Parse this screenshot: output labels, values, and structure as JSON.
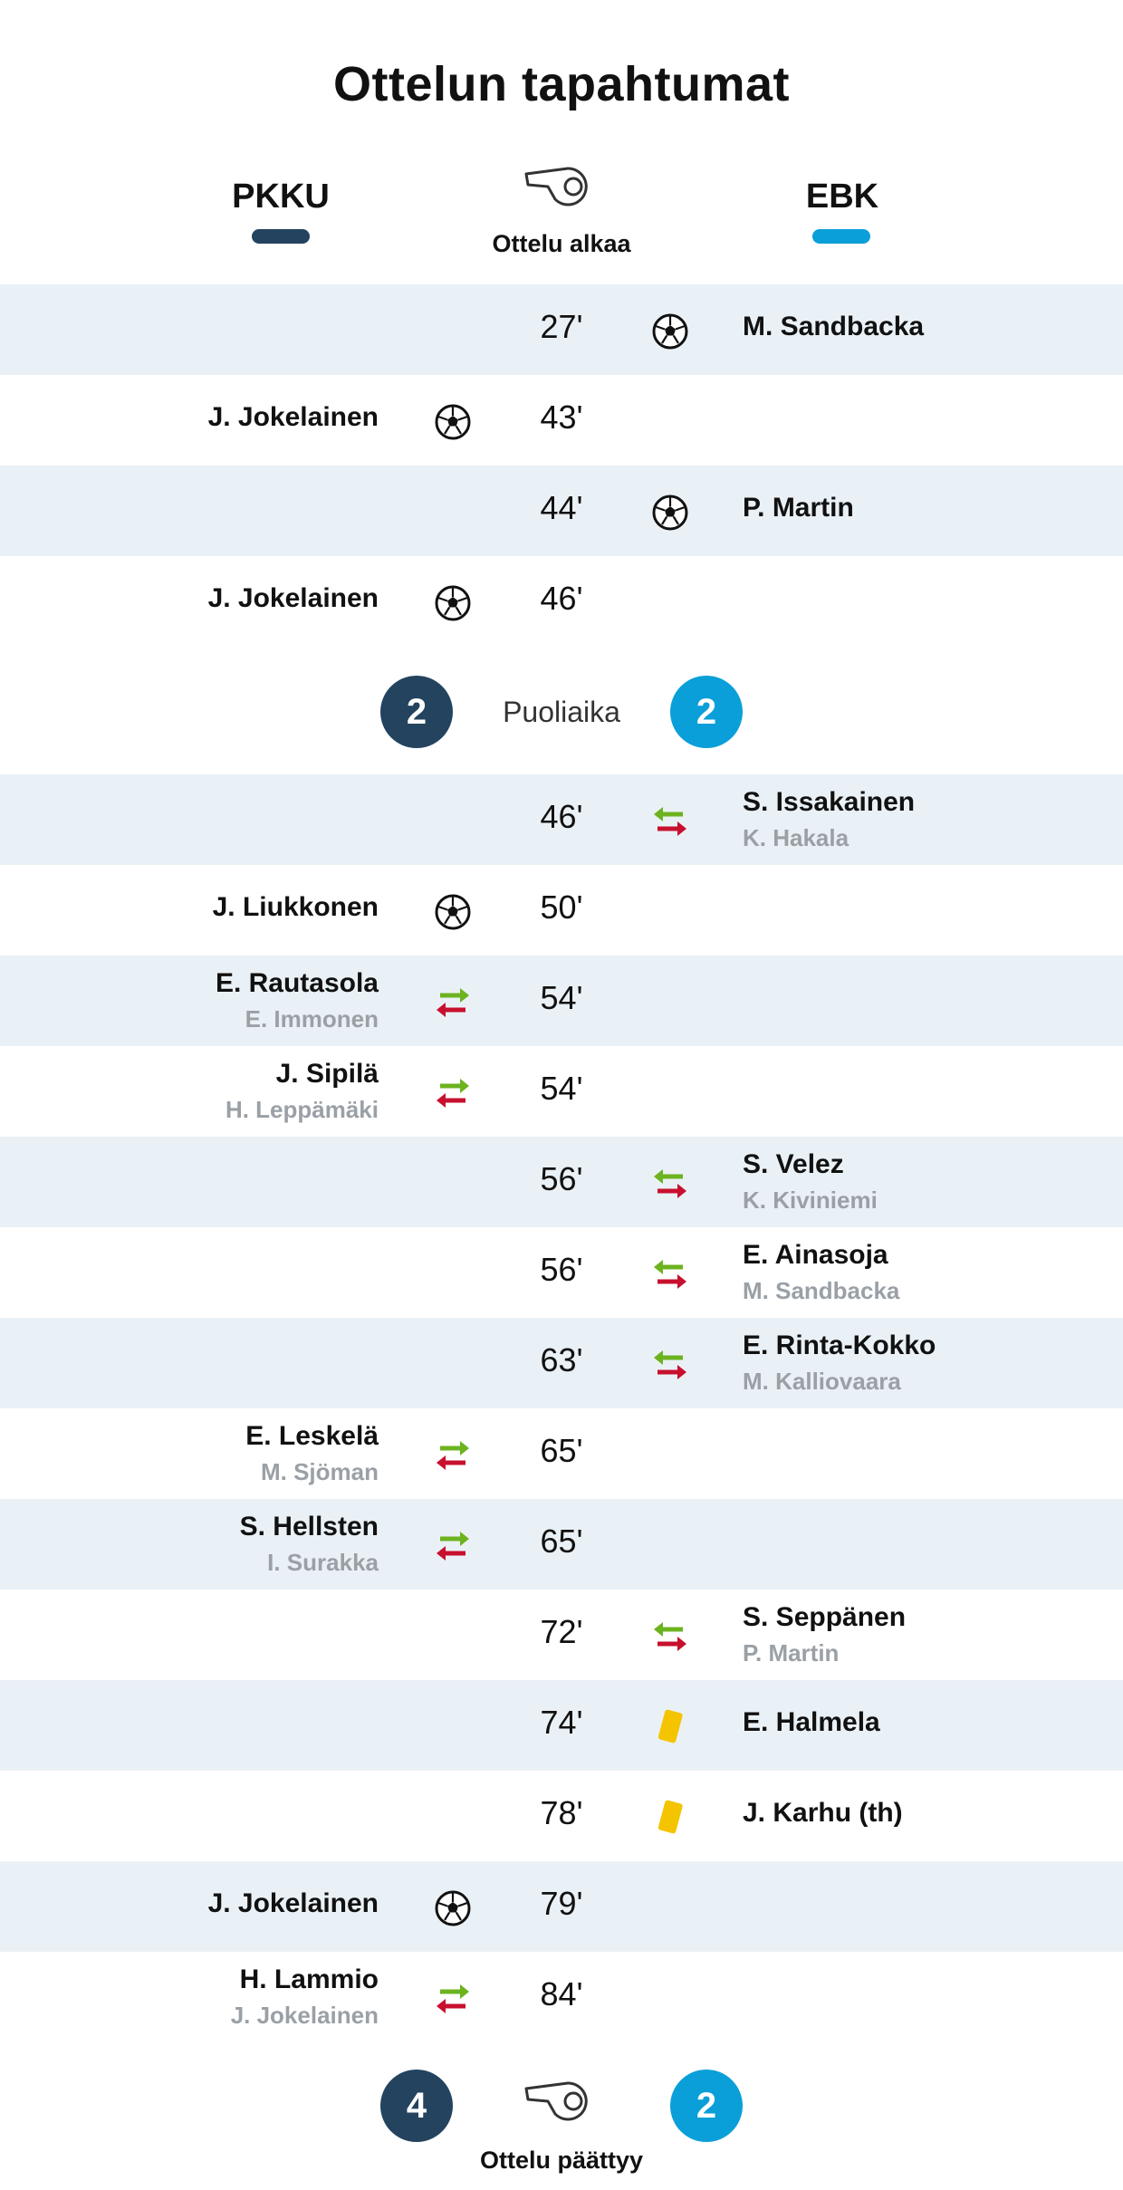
{
  "title": "Ottelun tapahtumat",
  "teams": {
    "home": {
      "name": "PKKU",
      "color": "#23435f"
    },
    "away": {
      "name": "EBK",
      "color": "#0a9fd8"
    }
  },
  "start_label": "Ottelu alkaa",
  "halftime": {
    "label": "Puoliaika",
    "home": "2",
    "away": "2"
  },
  "fulltime": {
    "label": "Ottelu päättyy",
    "home": "4",
    "away": "2"
  },
  "events": [
    {
      "minute": "27'",
      "side": "away",
      "type": "goal",
      "player": "M. Sandbacka"
    },
    {
      "minute": "43'",
      "side": "home",
      "type": "goal",
      "player": "J. Jokelainen"
    },
    {
      "minute": "44'",
      "side": "away",
      "type": "goal",
      "player": "P. Martin"
    },
    {
      "minute": "46'",
      "side": "home",
      "type": "goal",
      "player": "J. Jokelainen"
    },
    {
      "minute": "46'",
      "side": "away",
      "type": "substitution",
      "player": "S. Issakainen",
      "player_out": "K. Hakala"
    },
    {
      "minute": "50'",
      "side": "home",
      "type": "goal",
      "player": "J. Liukkonen"
    },
    {
      "minute": "54'",
      "side": "home",
      "type": "substitution",
      "player": "E. Rautasola",
      "player_out": "E. Immonen"
    },
    {
      "minute": "54'",
      "side": "home",
      "type": "substitution",
      "player": "J. Sipilä",
      "player_out": "H. Leppämäki"
    },
    {
      "minute": "56'",
      "side": "away",
      "type": "substitution",
      "player": "S. Velez",
      "player_out": "K. Kiviniemi"
    },
    {
      "minute": "56'",
      "side": "away",
      "type": "substitution",
      "player": "E. Ainasoja",
      "player_out": "M. Sandbacka"
    },
    {
      "minute": "63'",
      "side": "away",
      "type": "substitution",
      "player": "E. Rinta-Kokko",
      "player_out": "M. Kalliovaara"
    },
    {
      "minute": "65'",
      "side": "home",
      "type": "substitution",
      "player": "E. Leskelä",
      "player_out": "M. Sjöman"
    },
    {
      "minute": "65'",
      "side": "home",
      "type": "substitution",
      "player": "S. Hellsten",
      "player_out": "I. Surakka"
    },
    {
      "minute": "72'",
      "side": "away",
      "type": "substitution",
      "player": "S. Seppänen",
      "player_out": "P. Martin"
    },
    {
      "minute": "74'",
      "side": "away",
      "type": "yellow-card",
      "player": "E. Halmela"
    },
    {
      "minute": "78'",
      "side": "away",
      "type": "yellow-card",
      "player": "J. Karhu (th)"
    },
    {
      "minute": "79'",
      "side": "home",
      "type": "goal",
      "player": "J. Jokelainen"
    },
    {
      "minute": "84'",
      "side": "home",
      "type": "substitution",
      "player": "H. Lammio",
      "player_out": "J. Jokelainen"
    }
  ],
  "icons": {
    "goal": "soccer-ball-icon",
    "substitution": "substitution-arrows-icon",
    "yellow-card": "yellow-card-icon",
    "whistle": "whistle-icon"
  },
  "colors": {
    "sub_in": "#6cb31f",
    "sub_out": "#c8102e",
    "yellow_card": "#f5c400",
    "shaded_row": "#eaf1f6"
  }
}
